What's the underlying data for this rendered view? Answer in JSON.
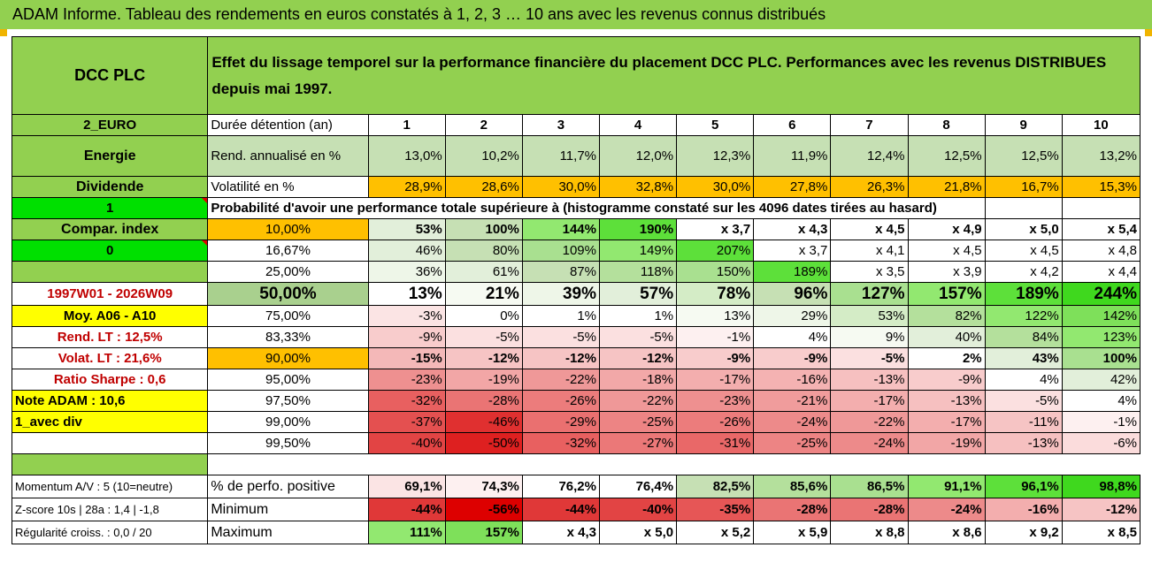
{
  "window_title": "ADAM Informe. Tableau des rendements en euros constatés à 1, 2, 3 … 10 ans avec les revenus connus distribués",
  "header": {
    "company": "DCC PLC",
    "description": "Effet du lissage temporel sur la performance financière du placement DCC PLC. Performances avec les revenus DISTRIBUES depuis mai 1997."
  },
  "side": {
    "currency": "2_EURO",
    "sector": "Energie",
    "dividend": "Dividende",
    "one": "1",
    "compar_index": "Compar. index",
    "zero": "0",
    "period": "1997W01 - 2026W09",
    "moy": "Moy. A06 - A10",
    "rend_lt": "Rend. LT :   12,5%",
    "volat_lt": "Volat. LT :   21,6%",
    "sharpe": "Ratio Sharpe :   0,6",
    "note": "Note ADAM : 10,6",
    "avec_div": "1_avec div",
    "momentum": "Momentum A/V : 5 (10=neutre)",
    "zscore": "Z-score 10s | 28a : 1,4 | -1,8",
    "regularite": "Régularité croiss. : 0,0 / 20"
  },
  "rows": {
    "duree_label": "Durée détention (an)",
    "years": [
      "1",
      "2",
      "3",
      "4",
      "5",
      "6",
      "7",
      "8",
      "9",
      "10"
    ],
    "rend_label": "Rend. annualisé en %",
    "rend": [
      "13,0%",
      "10,2%",
      "11,7%",
      "12,0%",
      "12,3%",
      "11,9%",
      "12,4%",
      "12,5%",
      "12,5%",
      "13,2%"
    ],
    "vol_label": "Volatilité en %",
    "vol": [
      "28,9%",
      "28,6%",
      "30,0%",
      "32,8%",
      "30,0%",
      "27,8%",
      "26,3%",
      "21,8%",
      "16,7%",
      "15,3%"
    ],
    "proba_label": "Probabilité d'avoir une performance totale supérieure à (histogramme constaté sur les 4096 dates tirées au hasard)"
  },
  "proba": [
    {
      "label": "10,00%",
      "values": [
        "53%",
        "100%",
        "144%",
        "190%",
        "x 3,7",
        "x 4,3",
        "x 4,5",
        "x 4,9",
        "x 5,0",
        "x 5,4"
      ],
      "colors": [
        "#e2efda",
        "#c6e0b4",
        "#92e870",
        "#5de03a",
        "#ffffff",
        "#ffffff",
        "#ffffff",
        "#ffffff",
        "#ffffff",
        "#ffffff"
      ]
    },
    {
      "label": "16,67%",
      "values": [
        "46%",
        "80%",
        "109%",
        "149%",
        "207%",
        "x 3,7",
        "x 4,1",
        "x 4,5",
        "x 4,5",
        "x 4,8"
      ],
      "colors": [
        "#e2efda",
        "#c6e0b4",
        "#a9e090",
        "#92e870",
        "#5de03a",
        "#ffffff",
        "#ffffff",
        "#ffffff",
        "#ffffff",
        "#ffffff"
      ]
    },
    {
      "label": "25,00%",
      "values": [
        "36%",
        "61%",
        "87%",
        "118%",
        "150%",
        "189%",
        "x 3,5",
        "x 3,9",
        "x 4,2",
        "x 4,4"
      ],
      "colors": [
        "#eef6e8",
        "#e2efda",
        "#c6e0b4",
        "#b4e09c",
        "#a9e090",
        "#5de03a",
        "#ffffff",
        "#ffffff",
        "#ffffff",
        "#ffffff"
      ]
    },
    {
      "label": "50,00%",
      "values": [
        "13%",
        "21%",
        "39%",
        "57%",
        "78%",
        "96%",
        "127%",
        "157%",
        "189%",
        "244%"
      ],
      "colors": [
        "#ffffff",
        "#f6faf2",
        "#eef6e8",
        "#e2efda",
        "#d4ecc6",
        "#c6e0b4",
        "#a9e090",
        "#92e870",
        "#5de03a",
        "#3fd81e"
      ]
    },
    {
      "label": "75,00%",
      "values": [
        "-3%",
        "0%",
        "1%",
        "1%",
        "13%",
        "29%",
        "53%",
        "82%",
        "122%",
        "142%"
      ],
      "colors": [
        "#fbe4e4",
        "#ffffff",
        "#ffffff",
        "#ffffff",
        "#f6faf2",
        "#eef6e8",
        "#d4ecc6",
        "#b4e09c",
        "#92e870",
        "#7ee05a"
      ]
    },
    {
      "label": "83,33%",
      "values": [
        "-9%",
        "-5%",
        "-5%",
        "-5%",
        "-1%",
        "4%",
        "9%",
        "40%",
        "84%",
        "123%"
      ],
      "colors": [
        "#f8cccc",
        "#fbe0e0",
        "#fbe0e0",
        "#fbe0e0",
        "#fdf0f0",
        "#ffffff",
        "#f6faf2",
        "#e2efda",
        "#b4e09c",
        "#92e870"
      ]
    },
    {
      "label": "90,00%",
      "values": [
        "-15%",
        "-12%",
        "-12%",
        "-12%",
        "-9%",
        "-9%",
        "-5%",
        "2%",
        "43%",
        "100%"
      ],
      "colors": [
        "#f4b8b8",
        "#f6c4c4",
        "#f6c4c4",
        "#f6c4c4",
        "#f8cccc",
        "#f8cccc",
        "#fbe0e0",
        "#ffffff",
        "#e2efda",
        "#a9e090"
      ]
    },
    {
      "label": "95,00%",
      "values": [
        "-23%",
        "-19%",
        "-22%",
        "-18%",
        "-17%",
        "-16%",
        "-13%",
        "-9%",
        "4%",
        "42%"
      ],
      "colors": [
        "#ee9090",
        "#f2a6a6",
        "#ef9898",
        "#f2a8a8",
        "#f3aeae",
        "#f4b2b2",
        "#f6c0c0",
        "#f8cccc",
        "#ffffff",
        "#e2efda"
      ]
    },
    {
      "label": "97,50%",
      "values": [
        "-32%",
        "-28%",
        "-26%",
        "-22%",
        "-23%",
        "-21%",
        "-17%",
        "-13%",
        "-5%",
        "4%"
      ],
      "colors": [
        "#e86060",
        "#ea7474",
        "#ec7c7c",
        "#ef9898",
        "#ee9090",
        "#f09c9c",
        "#f3aeae",
        "#f6c0c0",
        "#fbe0e0",
        "#ffffff"
      ]
    },
    {
      "label": "99,00%",
      "values": [
        "-37%",
        "-46%",
        "-29%",
        "-25%",
        "-26%",
        "-24%",
        "-22%",
        "-17%",
        "-11%",
        "-1%"
      ],
      "colors": [
        "#e45050",
        "#e03030",
        "#ea7070",
        "#ed8484",
        "#ec7c7c",
        "#ed8a8a",
        "#ef9898",
        "#f3aeae",
        "#f6c4c4",
        "#fdf0f0"
      ]
    },
    {
      "label": "99,50%",
      "values": [
        "-40%",
        "-50%",
        "-32%",
        "-27%",
        "-31%",
        "-25%",
        "-24%",
        "-19%",
        "-13%",
        "-6%"
      ],
      "colors": [
        "#e24444",
        "#de2020",
        "#e86060",
        "#eb7878",
        "#e96868",
        "#ed8484",
        "#ed8a8a",
        "#f2a6a6",
        "#f6c0c0",
        "#fbdcdc"
      ]
    }
  ],
  "bottom": {
    "pos_label": "% de perfo. positive",
    "pos": [
      "69,1%",
      "74,3%",
      "76,2%",
      "76,4%",
      "82,5%",
      "85,6%",
      "86,5%",
      "91,1%",
      "96,1%",
      "98,8%"
    ],
    "pos_colors": [
      "#fbe4e4",
      "#fdf0f0",
      "#ffffff",
      "#ffffff",
      "#c6e0b4",
      "#b4e09c",
      "#a9e090",
      "#92e870",
      "#5de03a",
      "#3fd81e"
    ],
    "min_label": "Minimum",
    "min": [
      "-44%",
      "-56%",
      "-44%",
      "-40%",
      "-35%",
      "-28%",
      "-28%",
      "-24%",
      "-16%",
      "-12%"
    ],
    "min_colors": [
      "#e03838",
      "#dd0000",
      "#e03838",
      "#e24444",
      "#e65656",
      "#ea7474",
      "#ea7474",
      "#ed8a8a",
      "#f3aeae",
      "#f6c4c4"
    ],
    "max_label": "Maximum",
    "max": [
      "111%",
      "157%",
      "x 4,3",
      "x 5,0",
      "x 5,2",
      "x 5,9",
      "x 8,8",
      "x 8,6",
      "x 9,2",
      "x 8,5"
    ],
    "max_colors": [
      "#92e870",
      "#7ee05a",
      "#ffffff",
      "#ffffff",
      "#ffffff",
      "#ffffff",
      "#ffffff",
      "#ffffff",
      "#ffffff",
      "#ffffff"
    ]
  }
}
